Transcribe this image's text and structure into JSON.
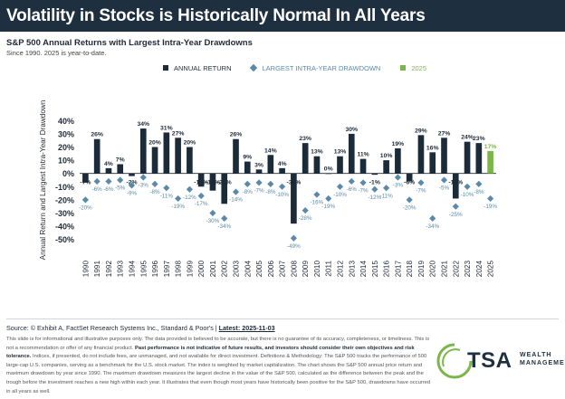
{
  "header": {
    "title": "Volatility in Stocks is Historically Normal In All Years"
  },
  "subtitle": "S&P 500 Annual Returns with Largest Intra-Year Drawdowns",
  "note": "Since 1990. 2025 is year-to-date.",
  "legend": {
    "annual_return": "ANNUAL RETURN",
    "drawdown": "LARGEST INTRA-YEAR DRAWDOWN",
    "current": "2025"
  },
  "colors": {
    "header_bg": "#1e2f3f",
    "annual_return": "#1c2b39",
    "drawdown": "#5b8aa8",
    "current": "#7ab648",
    "green_accent": "#7ab648"
  },
  "chart_data": {
    "type": "bar",
    "ylabel": "Annual Return and Largest Intra-Year Drawdown",
    "ylim": [
      -55,
      45
    ],
    "yticks": [
      40,
      30,
      20,
      10,
      0,
      -10,
      -20,
      -30,
      -40,
      -50
    ],
    "ytick_labels": [
      "40%",
      "30%",
      "20%",
      "10%",
      "0%",
      "-10%",
      "-20%",
      "-30%",
      "-40%",
      "-50%"
    ],
    "categories": [
      "1990",
      "1991",
      "1992",
      "1993",
      "1994",
      "1995",
      "1996",
      "1997",
      "1998",
      "1999",
      "2000",
      "2001",
      "2002",
      "2003",
      "2004",
      "2005",
      "2006",
      "2007",
      "2008",
      "2009",
      "2010",
      "2011",
      "2012",
      "2013",
      "2014",
      "2015",
      "2016",
      "2017",
      "2018",
      "2019",
      "2020",
      "2021",
      "2022",
      "2023",
      "2024",
      "2025"
    ],
    "series": [
      {
        "name": "ANNUAL RETURN",
        "values": [
          -7,
          26,
          4,
          7,
          -2,
          34,
          20,
          31,
          27,
          20,
          -10,
          -13,
          -23,
          26,
          9,
          3,
          14,
          4,
          -38,
          23,
          13,
          0,
          13,
          30,
          11,
          -1,
          10,
          19,
          -6,
          29,
          16,
          27,
          -19,
          24,
          23,
          17
        ],
        "labels": [
          "-7%",
          "26%",
          "4%",
          "7%",
          "-2%",
          "34%",
          "20%",
          "31%",
          "27%",
          "20%",
          "-10%",
          "-13%",
          "-23%",
          "26%",
          "9%",
          "3%",
          "14%",
          "4%",
          "-38%",
          "23%",
          "13%",
          "0%",
          "13%",
          "30%",
          "11%",
          "-1%",
          "10%",
          "19%",
          "-6%",
          "29%",
          "16%",
          "27%",
          "-19%",
          "24%",
          "23%",
          "17%"
        ]
      },
      {
        "name": "LARGEST INTRA-YEAR DRAWDOWN",
        "values": [
          -20,
          -6,
          -6,
          -5,
          -9,
          -3,
          -8,
          -11,
          -19,
          -12,
          -17,
          -30,
          -34,
          -14,
          -8,
          -7,
          -8,
          -10,
          -49,
          -28,
          -16,
          -19,
          -10,
          -6,
          -7,
          -12,
          -11,
          -3,
          -20,
          -7,
          -34,
          -5,
          -25,
          -10,
          -8,
          -19
        ],
        "labels": [
          "-20%",
          "-6%",
          "-6%",
          "-5%",
          "-9%",
          "-3%",
          "-8%",
          "-11%",
          "-19%",
          "-12%",
          "-17%",
          "-30%",
          "-34%",
          "-14%",
          "-8%",
          "-7%",
          "-8%",
          "-10%",
          "-49%",
          "-28%",
          "-16%",
          "-19%",
          "-10%",
          "-6%",
          "-7%",
          "-12%",
          "-11%",
          "-3%",
          "-20%",
          "-7%",
          "-34%",
          "-5%",
          "-25%",
          "-10%",
          "-8%",
          "-19%"
        ]
      }
    ],
    "highlight_category": "2025"
  },
  "footer": {
    "source_prefix": "Source: © Exhibit A, FactSet Research Systems Inc., Standard & Poor's | ",
    "latest": "Latest: 2025-11-03",
    "disclaimer_1": "This slide is for informational and illustrative purposes only. The data provided is believed to be accurate, but there is no guarantee of its accuracy, completeness, or timeliness. This is not a recommendation or offer of any financial product. ",
    "disclaimer_bold": "Past performance is not indicative of future results, and investors should consider their own objectives and risk tolerance.",
    "disclaimer_2": " Indices, if presented, do not include fees, are unmanaged, and not available for direct investment. Definitions & Methodology: The S&P 500 tracks the performance of 500 large-cap U.S. companies, serving as a benchmark for the U.S. stock market. The index is weighted by market capitalization. The chart shows the S&P 500 annual price return and maximum drawdown by year since 1990. The maximum drawdown measures the largest decline in the value of the S&P 500, calculated as the difference between the peak and the trough before the investment reaches a new high within each year. It illustrates that even though most years have historically been positive for the S&P 500, drawdowns have occurred in all years as well."
  },
  "logo": {
    "name": "TSA",
    "line1": "WEALTH",
    "line2": "MANAGEMENT"
  }
}
